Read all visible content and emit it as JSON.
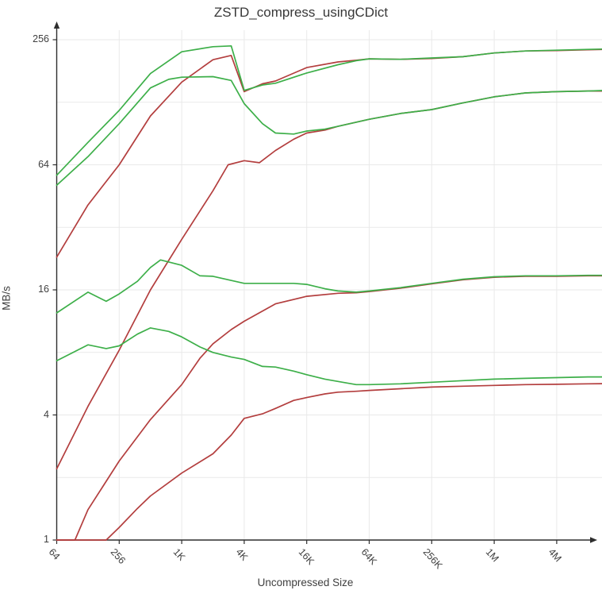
{
  "chart_data": {
    "type": "line",
    "title": "ZSTD_compress_usingCDict",
    "xlabel": "Uncompressed Size",
    "ylabel": "MB/s",
    "x_scale": "log2",
    "y_scale": "log2",
    "x_range_bytes": [
      64,
      12582912
    ],
    "ylim": [
      1,
      256
    ],
    "grid": true,
    "legend_position": "none",
    "x_ticks": [
      {
        "label": "64",
        "value": 64
      },
      {
        "label": "256",
        "value": 256
      },
      {
        "label": "1K",
        "value": 1024
      },
      {
        "label": "4K",
        "value": 4096
      },
      {
        "label": "16K",
        "value": 16384
      },
      {
        "label": "64K",
        "value": 65536
      },
      {
        "label": "256K",
        "value": 262144
      },
      {
        "label": "1M",
        "value": 1048576
      },
      {
        "label": "4M",
        "value": 4194304
      }
    ],
    "y_ticks": [
      {
        "label": "1",
        "value": 1
      },
      {
        "label": "4",
        "value": 4
      },
      {
        "label": "16",
        "value": 16
      },
      {
        "label": "64",
        "value": 64
      },
      {
        "label": "256",
        "value": 256
      }
    ],
    "y_gridline_values": [
      2,
      4,
      8,
      16,
      32,
      64,
      128,
      256
    ],
    "colors": {
      "green": "#3daf49",
      "red": "#b33e3e",
      "grid": "#e9e9e9",
      "axis": "#2e2e2e",
      "text": "#3f3f3f"
    },
    "series": [
      {
        "name": "red-line-1",
        "color": "#b33e3e",
        "points": [
          [
            64,
            23
          ],
          [
            128,
            41
          ],
          [
            256,
            64
          ],
          [
            512,
            110
          ],
          [
            1024,
            160
          ],
          [
            2048,
            205
          ],
          [
            3072,
            215
          ],
          [
            4096,
            144
          ],
          [
            6144,
            157
          ],
          [
            8192,
            162
          ],
          [
            16384,
            188
          ],
          [
            32768,
            200
          ],
          [
            49152,
            204
          ],
          [
            65536,
            207
          ],
          [
            131072,
            206
          ],
          [
            262144,
            208
          ],
          [
            524288,
            212
          ],
          [
            1048576,
            221
          ],
          [
            2097152,
            226
          ],
          [
            4194304,
            227
          ],
          [
            8388608,
            229
          ],
          [
            12582912,
            230
          ]
        ]
      },
      {
        "name": "red-line-2",
        "color": "#b33e3e",
        "points": [
          [
            64,
            2.2
          ],
          [
            128,
            4.4
          ],
          [
            256,
            8.2
          ],
          [
            512,
            16
          ],
          [
            1024,
            28
          ],
          [
            2048,
            48
          ],
          [
            2867,
            64
          ],
          [
            4096,
            67
          ],
          [
            5734,
            65.5
          ],
          [
            8192,
            75
          ],
          [
            12288,
            85
          ],
          [
            16384,
            91
          ],
          [
            24576,
            94
          ],
          [
            32768,
            98
          ],
          [
            65536,
            106
          ],
          [
            131072,
            113
          ],
          [
            262144,
            118
          ],
          [
            524288,
            127
          ],
          [
            1048576,
            136
          ],
          [
            2097152,
            142
          ],
          [
            4194304,
            144
          ],
          [
            8388608,
            145
          ],
          [
            12582912,
            145
          ]
        ]
      },
      {
        "name": "red-line-3",
        "color": "#b33e3e",
        "points": [
          [
            64,
            1
          ],
          [
            96,
            1
          ],
          [
            128,
            1.4
          ],
          [
            256,
            2.4
          ],
          [
            512,
            3.8
          ],
          [
            1024,
            5.6
          ],
          [
            1536,
            7.5
          ],
          [
            2048,
            8.8
          ],
          [
            3072,
            10.3
          ],
          [
            4096,
            11.3
          ],
          [
            8192,
            13.7
          ],
          [
            16384,
            14.9
          ],
          [
            32768,
            15.4
          ],
          [
            49152,
            15.5
          ],
          [
            65536,
            15.7
          ],
          [
            131072,
            16.3
          ],
          [
            262144,
            17.1
          ],
          [
            524288,
            17.9
          ],
          [
            1048576,
            18.4
          ],
          [
            2097152,
            18.6
          ],
          [
            4194304,
            18.6
          ],
          [
            8388608,
            18.7
          ],
          [
            12582912,
            18.7
          ]
        ]
      },
      {
        "name": "red-line-4",
        "color": "#b33e3e",
        "points": [
          [
            64,
            1
          ],
          [
            192,
            1
          ],
          [
            256,
            1.15
          ],
          [
            384,
            1.42
          ],
          [
            512,
            1.63
          ],
          [
            1024,
            2.1
          ],
          [
            2048,
            2.6
          ],
          [
            3072,
            3.2
          ],
          [
            4096,
            3.85
          ],
          [
            6144,
            4.05
          ],
          [
            8192,
            4.3
          ],
          [
            12288,
            4.7
          ],
          [
            16384,
            4.85
          ],
          [
            24576,
            5.05
          ],
          [
            32768,
            5.15
          ],
          [
            49152,
            5.2
          ],
          [
            65536,
            5.25
          ],
          [
            131072,
            5.35
          ],
          [
            262144,
            5.45
          ],
          [
            524288,
            5.5
          ],
          [
            1048576,
            5.55
          ],
          [
            2097152,
            5.6
          ],
          [
            4194304,
            5.62
          ],
          [
            8388608,
            5.65
          ],
          [
            12582912,
            5.66
          ]
        ]
      },
      {
        "name": "green-line-1",
        "color": "#3daf49",
        "points": [
          [
            64,
            57
          ],
          [
            128,
            82
          ],
          [
            256,
            117
          ],
          [
            512,
            176
          ],
          [
            1024,
            224
          ],
          [
            2048,
            237
          ],
          [
            3072,
            239
          ],
          [
            4096,
            146
          ],
          [
            6144,
            155
          ],
          [
            8192,
            158
          ],
          [
            16384,
            177
          ],
          [
            32768,
            194
          ],
          [
            49152,
            203
          ],
          [
            65536,
            207
          ],
          [
            131072,
            206
          ],
          [
            262144,
            209
          ],
          [
            524288,
            212
          ],
          [
            1048576,
            221
          ],
          [
            2097152,
            226
          ],
          [
            4194304,
            228
          ],
          [
            8388608,
            230
          ],
          [
            12582912,
            231
          ]
        ]
      },
      {
        "name": "green-line-2",
        "color": "#3daf49",
        "points": [
          [
            64,
            51
          ],
          [
            128,
            70
          ],
          [
            256,
            101
          ],
          [
            512,
            150
          ],
          [
            768,
            165
          ],
          [
            1024,
            169
          ],
          [
            2048,
            170
          ],
          [
            3072,
            163
          ],
          [
            4096,
            126
          ],
          [
            6144,
            101
          ],
          [
            8192,
            91
          ],
          [
            12288,
            90
          ],
          [
            16384,
            93
          ],
          [
            24576,
            95
          ],
          [
            32768,
            98
          ],
          [
            65536,
            106
          ],
          [
            131072,
            113
          ],
          [
            262144,
            118
          ],
          [
            524288,
            127
          ],
          [
            1048576,
            136
          ],
          [
            2097152,
            142
          ],
          [
            4194304,
            144
          ],
          [
            8388608,
            145
          ],
          [
            12582912,
            146
          ]
        ]
      },
      {
        "name": "green-line-3",
        "color": "#3daf49",
        "points": [
          [
            64,
            12.4
          ],
          [
            128,
            15.6
          ],
          [
            192,
            14.1
          ],
          [
            256,
            15.3
          ],
          [
            384,
            17.6
          ],
          [
            512,
            20.5
          ],
          [
            640,
            22.3
          ],
          [
            1024,
            21
          ],
          [
            1536,
            18.7
          ],
          [
            2048,
            18.6
          ],
          [
            4096,
            17.2
          ],
          [
            8192,
            17.2
          ],
          [
            12288,
            17.2
          ],
          [
            16384,
            17
          ],
          [
            24576,
            16.2
          ],
          [
            32768,
            15.8
          ],
          [
            49152,
            15.6
          ],
          [
            65536,
            15.8
          ],
          [
            131072,
            16.4
          ],
          [
            262144,
            17.2
          ],
          [
            524288,
            18
          ],
          [
            1048576,
            18.5
          ],
          [
            2097152,
            18.7
          ],
          [
            4194304,
            18.7
          ],
          [
            8388608,
            18.8
          ],
          [
            12582912,
            18.8
          ]
        ]
      },
      {
        "name": "green-line-4",
        "color": "#3daf49",
        "points": [
          [
            64,
            7.3
          ],
          [
            128,
            8.7
          ],
          [
            192,
            8.35
          ],
          [
            256,
            8.6
          ],
          [
            384,
            9.8
          ],
          [
            512,
            10.5
          ],
          [
            768,
            10.1
          ],
          [
            1024,
            9.5
          ],
          [
            1536,
            8.5
          ],
          [
            2048,
            8
          ],
          [
            3072,
            7.6
          ],
          [
            4096,
            7.4
          ],
          [
            6144,
            6.85
          ],
          [
            8192,
            6.8
          ],
          [
            12288,
            6.5
          ],
          [
            16384,
            6.25
          ],
          [
            24576,
            5.95
          ],
          [
            32768,
            5.8
          ],
          [
            49152,
            5.6
          ],
          [
            65536,
            5.6
          ],
          [
            131072,
            5.65
          ],
          [
            262144,
            5.75
          ],
          [
            524288,
            5.85
          ],
          [
            1048576,
            5.95
          ],
          [
            2097152,
            6
          ],
          [
            4194304,
            6.05
          ],
          [
            8388608,
            6.1
          ],
          [
            12582912,
            6.1
          ]
        ]
      }
    ]
  }
}
